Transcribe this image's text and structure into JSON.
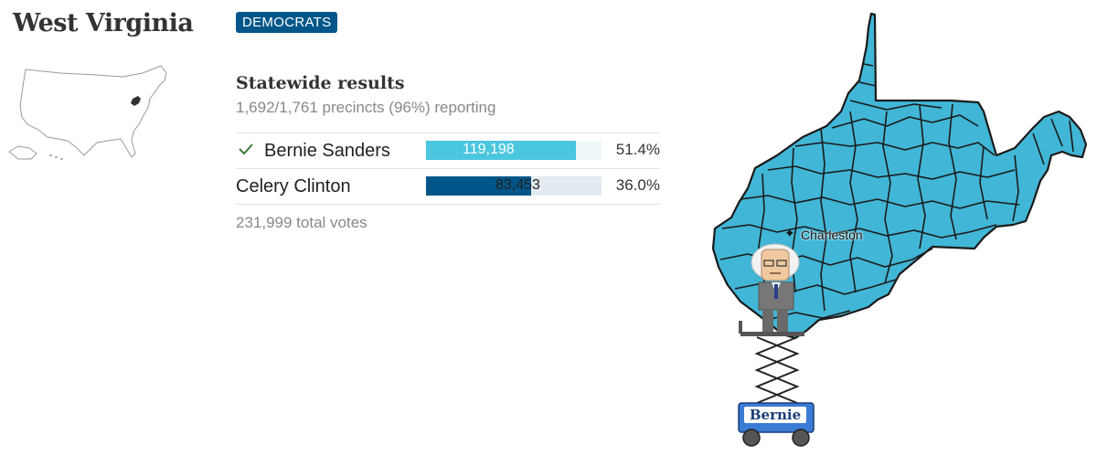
{
  "state": {
    "title": "West Virginia"
  },
  "party": {
    "label": "DEMOCRATS"
  },
  "results": {
    "heading": "Statewide results",
    "reporting": "1,692/1,761 precincts (96%) reporting",
    "total_votes": "231,999 total votes",
    "candidates": [
      {
        "name": "Bernie Sanders",
        "votes": "119,198",
        "percent": "51.4%",
        "share": 0.514,
        "winner": true,
        "color": "#4bc6df",
        "track_color": "#eef8fb"
      },
      {
        "name": "Celery Clinton",
        "votes": "83,453",
        "percent": "36.0%",
        "share": 0.36,
        "winner": false,
        "color": "#005689",
        "track_color": "#e3eaf0"
      }
    ]
  },
  "map": {
    "city_label": "Charleston",
    "fill_color": "#41b6d6"
  },
  "lift": {
    "sign_text": "Bernie"
  },
  "colors": {
    "accent": "#005689",
    "winner_check": "#3e7b3e"
  }
}
